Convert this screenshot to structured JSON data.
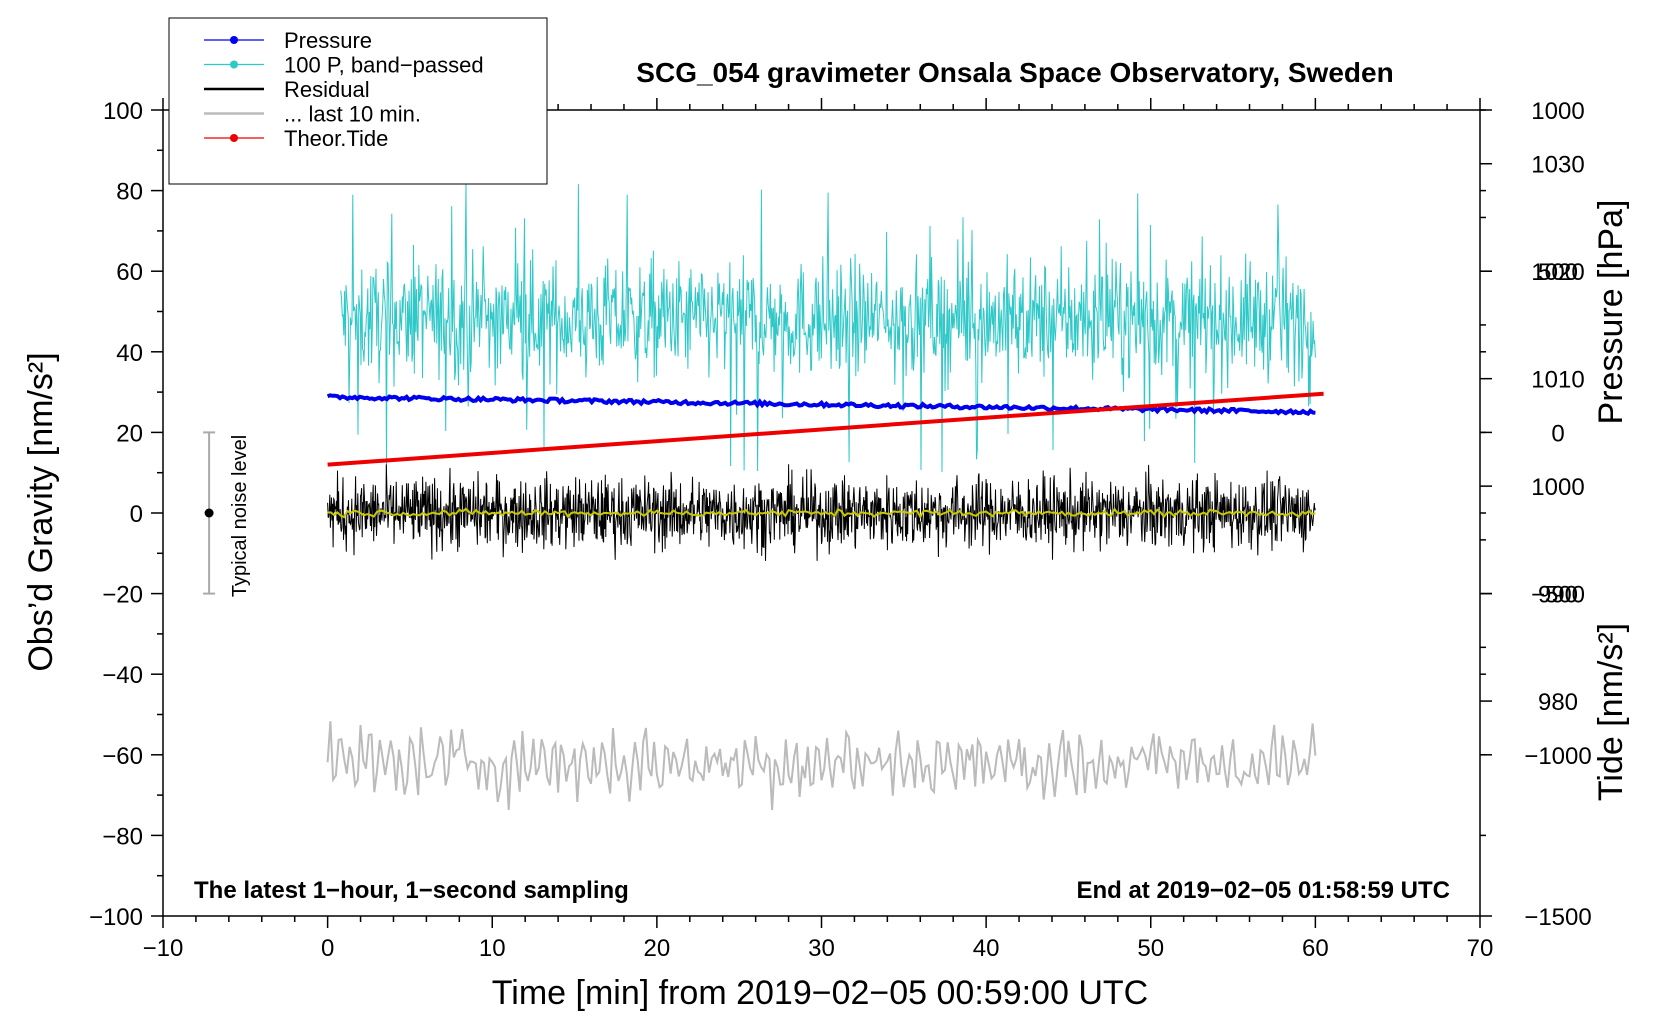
{
  "chart_data": {
    "type": "line",
    "title": "SCG_054 gravimeter Onsala Space Observatory, Sweden",
    "xlabel": "Time [min] from 2019−02−05 00:59:00 UTC",
    "ylabel_left": "Obs’d Gravity [nm/s²]",
    "ylabel_right_top": "Pressure [hPa]",
    "ylabel_right_bottom": "Tide [nm/s²]",
    "xlim": [
      -10,
      70
    ],
    "ylim": [
      -100,
      100
    ],
    "pressure_lim": [
      960,
      1035
    ],
    "tide_lim": [
      -1500,
      1000
    ],
    "x_ticks": [
      "−10",
      "0",
      "10",
      "20",
      "30",
      "40",
      "50",
      "60",
      "70"
    ],
    "y_ticks": [
      "100",
      "80",
      "60",
      "40",
      "20",
      "0",
      "−20",
      "−40",
      "−60",
      "−80",
      "−100"
    ],
    "pressure_ticks": [
      "1030",
      "1020",
      "1010",
      "1000",
      "990",
      "980"
    ],
    "tide_ticks": [
      "1000",
      "500",
      "0",
      "−500",
      "−1000",
      "−1500"
    ],
    "annotation_left": "The latest 1−hour, 1−second sampling",
    "annotation_right": "End at 2019−02−05 01:58:59 UTC",
    "noise_label": "Typical noise level",
    "noise_bar": {
      "center": 0,
      "half_range": 20
    },
    "legend": [
      {
        "name": "Pressure",
        "color": "#0000ee",
        "marker": true
      },
      {
        "name": "100 P, band−passed",
        "color": "#2ec8c8",
        "marker": true
      },
      {
        "name": "Residual",
        "color": "#000000",
        "marker": false
      },
      {
        "name": "... last 10 min.",
        "color": "#bbbbbb",
        "marker": false
      },
      {
        "name": "Theor.Tide",
        "color": "#ee0000",
        "marker": true
      }
    ],
    "series": [
      {
        "name": "Pressure",
        "axis": "pressure",
        "color": "#0000ee",
        "x": [
          0,
          60
        ],
        "values": [
          1008.3,
          1006.9
        ]
      },
      {
        "name": "100 P, band−passed",
        "axis": "gravity",
        "color": "#2ec8c8",
        "x_range": [
          0.8,
          60
        ],
        "mean": 48,
        "spread": 12,
        "min": 10,
        "max": 85
      },
      {
        "name": "Residual",
        "axis": "gravity",
        "color": "#000000",
        "x_range": [
          0,
          60
        ],
        "mean": 0,
        "spread": 6,
        "min": -17,
        "max": 15
      },
      {
        "name": "Residual smoothed",
        "axis": "gravity",
        "color": "#c8c800",
        "x_range": [
          0,
          60
        ],
        "mean": 0,
        "spread": 0.7
      },
      {
        "name": "... last 10 min.",
        "axis": "gravity",
        "color": "#bbbbbb",
        "x_range": [
          0,
          60
        ],
        "mean": -62,
        "spread": 5,
        "min": -79,
        "max": -47
      },
      {
        "name": "Theor.Tide",
        "axis": "tide",
        "color": "#ee0000",
        "x": [
          0,
          60.5
        ],
        "values": [
          -100,
          120
        ]
      }
    ]
  }
}
